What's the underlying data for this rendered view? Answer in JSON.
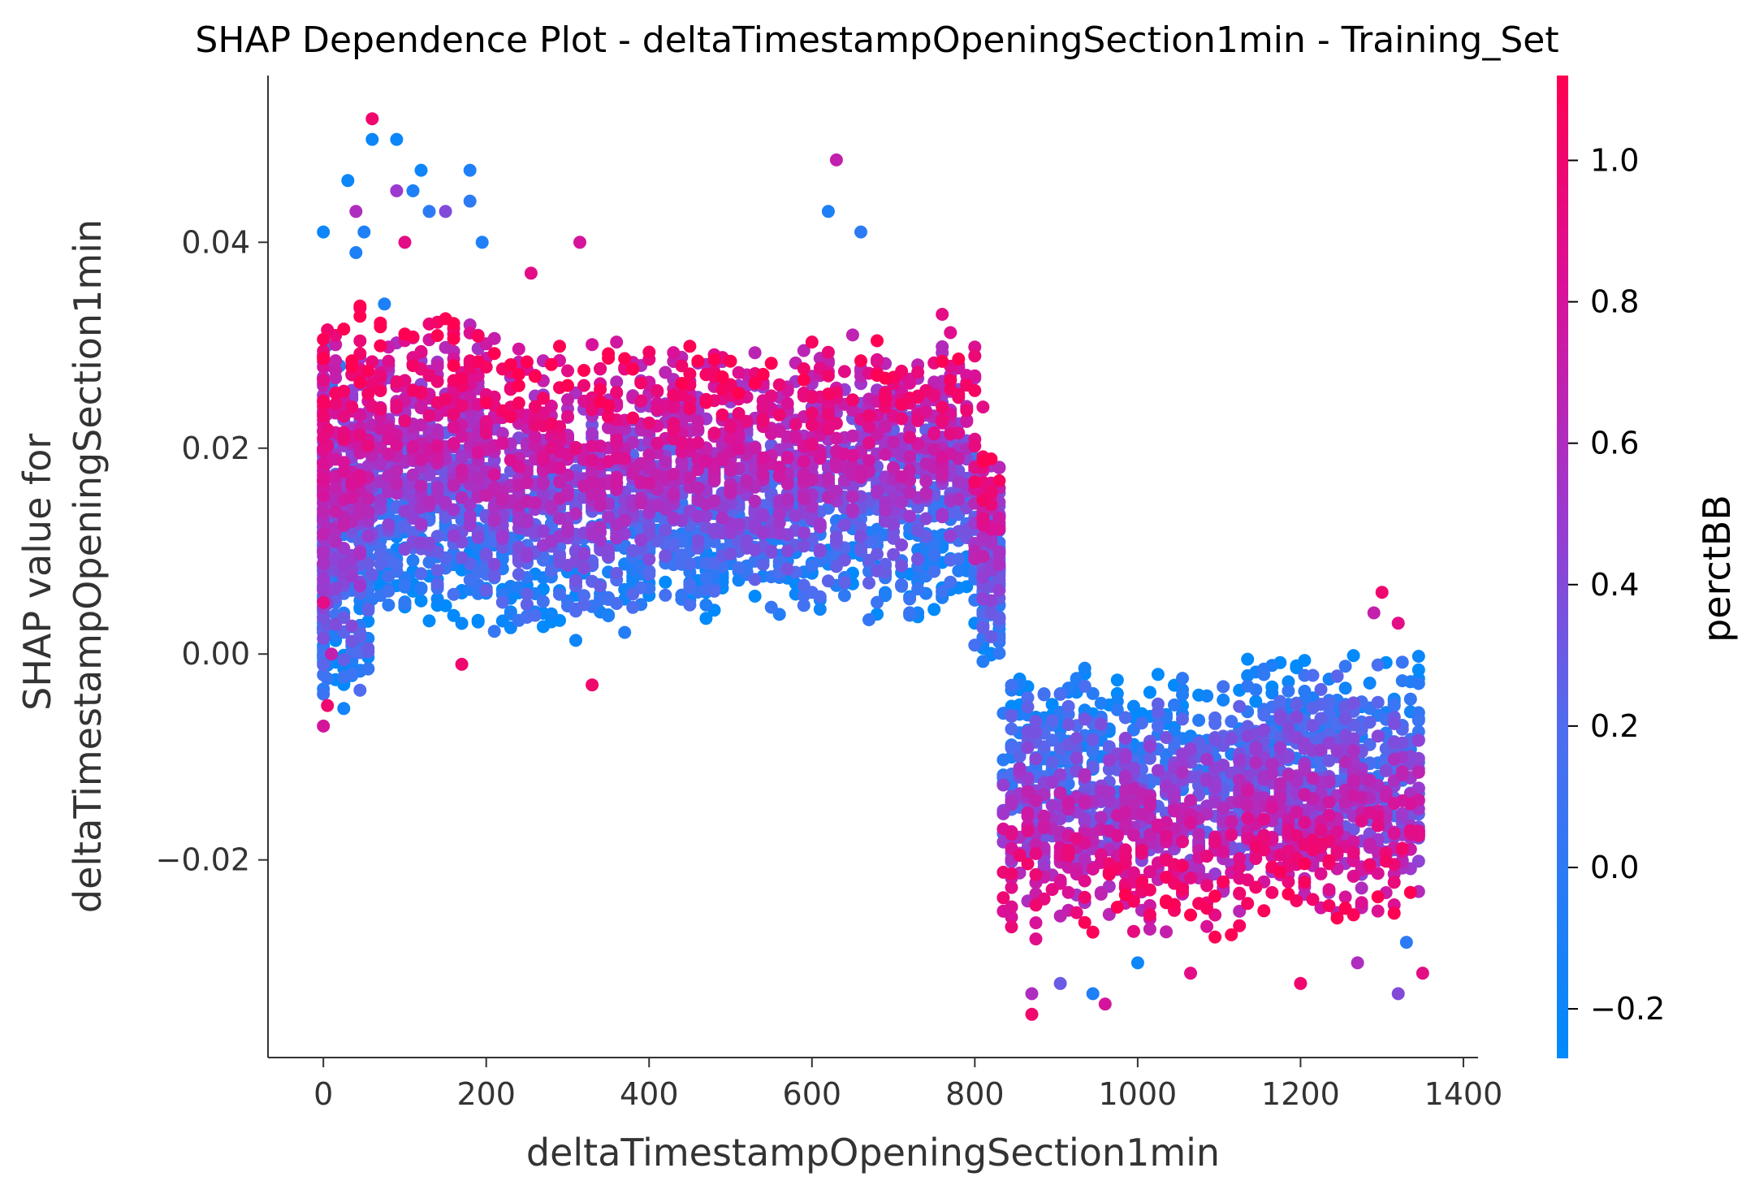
{
  "chart_data": {
    "type": "scatter",
    "title": "SHAP Dependence Plot - deltaTimestampOpeningSection1min - Training_Set",
    "xlabel": "deltaTimestampOpeningSection1min",
    "ylabel_lines": [
      "SHAP value for",
      "deltaTimestampOpeningSection1min"
    ],
    "xlim": [
      -68,
      1418
    ],
    "ylim": [
      -0.0392,
      0.0562
    ],
    "x_ticks": [
      0,
      200,
      400,
      600,
      800,
      1000,
      1200,
      1400
    ],
    "x_tick_labels": [
      "0",
      "200",
      "400",
      "600",
      "800",
      "1000",
      "1200",
      "1400"
    ],
    "y_ticks": [
      -0.02,
      0.0,
      0.02,
      0.04
    ],
    "y_tick_labels": [
      "−0.02",
      "0.00",
      "0.02",
      "0.04"
    ],
    "colorbar": {
      "label": "perctBB",
      "range": [
        -0.27,
        1.12
      ],
      "ticks": [
        -0.2,
        0.0,
        0.2,
        0.4,
        0.6,
        0.8,
        1.0
      ],
      "tick_labels": [
        "−0.2",
        "0.0",
        "0.2",
        "0.4",
        "0.6",
        "0.8",
        "1.0"
      ],
      "low_color": "#008afb",
      "high_color": "#ff0052"
    },
    "grid": false,
    "spines": "left-bottom",
    "series": [
      {
        "points": [
          [
            0,
            0.041,
            -0.2
          ],
          [
            0,
            0.02,
            0.1
          ],
          [
            0,
            0.005,
            0.9
          ],
          [
            0,
            -0.007,
            0.8
          ],
          [
            5,
            0.03,
            -0.1
          ],
          [
            5,
            -0.005,
            1.0
          ],
          [
            10,
            0.026,
            0.0
          ],
          [
            10,
            0.0,
            0.7
          ],
          [
            20,
            0.028,
            0.0
          ],
          [
            30,
            0.046,
            -0.2
          ],
          [
            40,
            0.043,
            0.6
          ],
          [
            40,
            0.039,
            -0.1
          ],
          [
            50,
            0.041,
            -0.1
          ],
          [
            60,
            0.052,
            1.0
          ],
          [
            60,
            0.05,
            -0.2
          ],
          [
            75,
            0.034,
            -0.1
          ],
          [
            90,
            0.05,
            -0.2
          ],
          [
            90,
            0.045,
            0.5
          ],
          [
            100,
            0.04,
            0.9
          ],
          [
            110,
            0.045,
            -0.1
          ],
          [
            120,
            0.047,
            -0.2
          ],
          [
            130,
            0.043,
            0.0
          ],
          [
            150,
            0.043,
            0.4
          ],
          [
            180,
            0.047,
            -0.1
          ],
          [
            180,
            0.044,
            0.0
          ],
          [
            195,
            0.04,
            -0.1
          ],
          [
            255,
            0.037,
            0.9
          ],
          [
            315,
            0.04,
            0.8
          ],
          [
            170,
            -0.001,
            1.0
          ],
          [
            330,
            -0.003,
            1.0
          ],
          [
            620,
            0.043,
            -0.1
          ],
          [
            630,
            0.048,
            0.7
          ],
          [
            660,
            0.041,
            0.0
          ],
          [
            760,
            0.033,
            0.9
          ],
          [
            810,
            0.024,
            0.9
          ],
          [
            820,
            0.016,
            -0.1
          ],
          [
            830,
            0.012,
            0.0
          ],
          [
            1300,
            0.006,
            1.0
          ],
          [
            1290,
            0.004,
            0.7
          ],
          [
            1320,
            0.003,
            0.9
          ],
          [
            870,
            -0.035,
            1.0
          ],
          [
            870,
            -0.033,
            0.6
          ],
          [
            905,
            -0.032,
            0.3
          ],
          [
            960,
            -0.034,
            0.8
          ],
          [
            945,
            -0.033,
            -0.1
          ],
          [
            1000,
            -0.03,
            -0.2
          ],
          [
            1065,
            -0.031,
            0.9
          ],
          [
            1200,
            -0.032,
            1.0
          ],
          [
            1320,
            -0.033,
            0.4
          ],
          [
            1350,
            -0.031,
            0.9
          ],
          [
            1270,
            -0.03,
            0.6
          ],
          [
            1330,
            -0.028,
            0.0
          ]
        ]
      }
    ],
    "clusters": [
      {
        "x": [
          0,
          5
        ],
        "y": [
          -0.0075,
          0.035
        ],
        "n": 180
      },
      {
        "x": [
          5,
          60
        ],
        "y": [
          -0.007,
          0.035
        ],
        "n": 350
      },
      {
        "x": [
          60,
          200
        ],
        "y": [
          0.002,
          0.034
        ],
        "n": 650
      },
      {
        "x": [
          200,
          400
        ],
        "y": [
          0.001,
          0.031
        ],
        "n": 780
      },
      {
        "x": [
          400,
          600
        ],
        "y": [
          0.003,
          0.031
        ],
        "n": 780
      },
      {
        "x": [
          600,
          800
        ],
        "y": [
          0.003,
          0.032
        ],
        "n": 700
      },
      {
        "x": [
          800,
          835
        ],
        "y": [
          -0.002,
          0.022
        ],
        "n": 180
      },
      {
        "x": [
          835,
          1135
        ],
        "y": [
          -0.028,
          -0.001
        ],
        "n": 900
      },
      {
        "x": [
          1135,
          1350
        ],
        "y": [
          -0.027,
          0.001
        ],
        "n": 720
      }
    ]
  }
}
